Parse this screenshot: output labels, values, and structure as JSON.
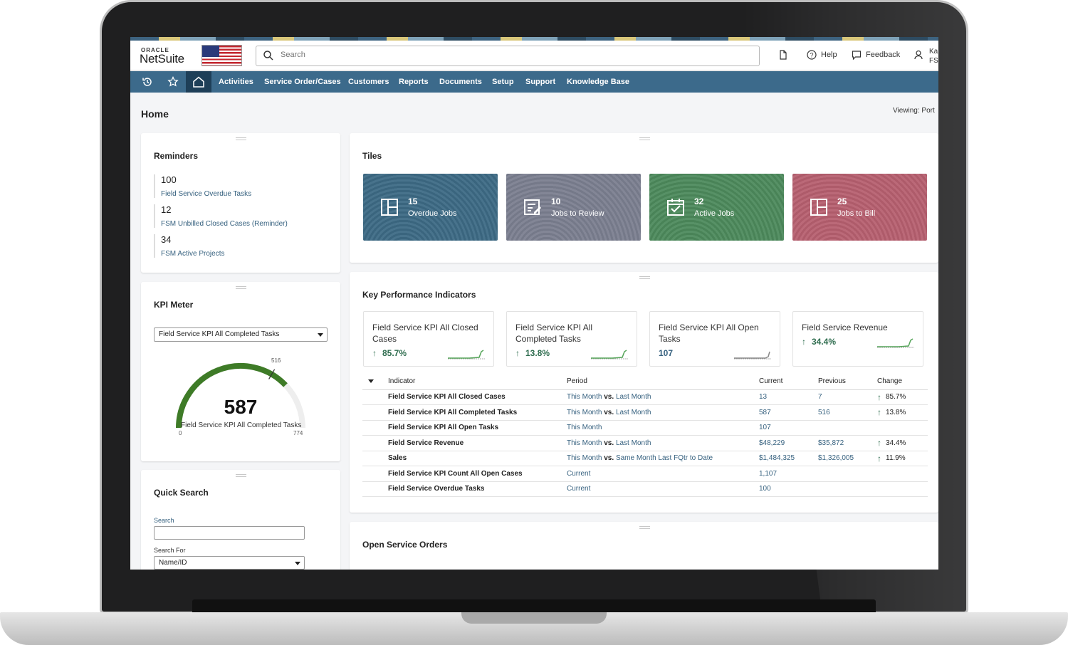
{
  "header": {
    "logo_oracle": "ORACLE",
    "logo_netsuite": "NetSuite",
    "search_placeholder": "Search",
    "help": "Help",
    "feedback": "Feedback",
    "user_line1": "Ka",
    "user_line2": "FSI"
  },
  "nav": {
    "items": [
      "Activities",
      "Service Order/Cases",
      "Customers",
      "Reports",
      "Documents",
      "Setup",
      "Support",
      "Knowledge Base"
    ]
  },
  "page": {
    "title": "Home",
    "viewing": "Viewing: Port"
  },
  "reminders": {
    "title": "Reminders",
    "items": [
      {
        "count": "100",
        "label": "Field Service Overdue Tasks"
      },
      {
        "count": "12",
        "label": "FSM Unbilled Closed Cases (Reminder)"
      },
      {
        "count": "34",
        "label": "FSM Active Projects"
      }
    ]
  },
  "kpi_meter": {
    "title": "KPI Meter",
    "selected": "Field Service KPI All Completed Tasks",
    "value": "587",
    "label": "Field Service KPI All Completed Tasks",
    "min": "0",
    "max": "774",
    "target": "516",
    "fraction": 0.758,
    "target_fraction": 0.667,
    "color_fill": "#3e7b27",
    "color_track": "#eeeeee"
  },
  "quick_search": {
    "title": "Quick Search",
    "search_label": "Search",
    "search_value": "",
    "search_for_label": "Search For",
    "search_for_value": "Name/ID"
  },
  "tiles": {
    "title": "Tiles",
    "items": [
      {
        "count": "15",
        "label": "Overdue Jobs",
        "color": "#3d6a85",
        "icon": "layout-icon"
      },
      {
        "count": "10",
        "label": "Jobs to Review",
        "color": "#7b7f90",
        "icon": "review-list-icon"
      },
      {
        "count": "32",
        "label": "Active Jobs",
        "color": "#4d8a5c",
        "icon": "calendar-check-icon"
      },
      {
        "count": "25",
        "label": "Jobs to Bill",
        "color": "#b76070",
        "icon": "layout-icon"
      }
    ]
  },
  "kpi": {
    "title": "Key Performance Indicators",
    "cards": [
      {
        "title": "Field Service KPI All Closed Cases",
        "value": "85.7%",
        "trend": "up"
      },
      {
        "title": "Field Service KPI All Completed Tasks",
        "value": "13.8%",
        "trend": "up"
      },
      {
        "title": "Field Service KPI All Open Tasks",
        "value": "107",
        "trend": "none"
      },
      {
        "title": "Field Service Revenue",
        "value": "34.4%",
        "trend": "up"
      }
    ],
    "columns": [
      "Indicator",
      "Period",
      "Current",
      "Previous",
      "Change"
    ],
    "vs": "vs.",
    "rows": [
      {
        "indicator": "Field Service KPI All Closed Cases",
        "period": "This Month",
        "compare": "Last Month",
        "current": "13",
        "previous": "7",
        "change": "85.7%"
      },
      {
        "indicator": "Field Service KPI All Completed Tasks",
        "period": "This Month",
        "compare": "Last Month",
        "current": "587",
        "previous": "516",
        "change": "13.8%"
      },
      {
        "indicator": "Field Service KPI All Open Tasks",
        "period": "This Month",
        "compare": "",
        "current": "107",
        "previous": "",
        "change": ""
      },
      {
        "indicator": "Field Service Revenue",
        "period": "This Month",
        "compare": "Last Month",
        "current": "$48,229",
        "previous": "$35,872",
        "change": "34.4%"
      },
      {
        "indicator": "Sales",
        "period": "This Month",
        "compare": "Same Month Last FQtr to Date",
        "current": "$1,484,325",
        "previous": "$1,326,005",
        "change": "11.9%"
      },
      {
        "indicator": "Field Service KPI Count All Open Cases",
        "period": "Current",
        "compare": "",
        "current": "1,107",
        "previous": "",
        "change": ""
      },
      {
        "indicator": "Field Service Overdue Tasks",
        "period": "Current",
        "compare": "",
        "current": "100",
        "previous": "",
        "change": ""
      }
    ]
  },
  "open_orders": {
    "title": "Open Service Orders"
  }
}
